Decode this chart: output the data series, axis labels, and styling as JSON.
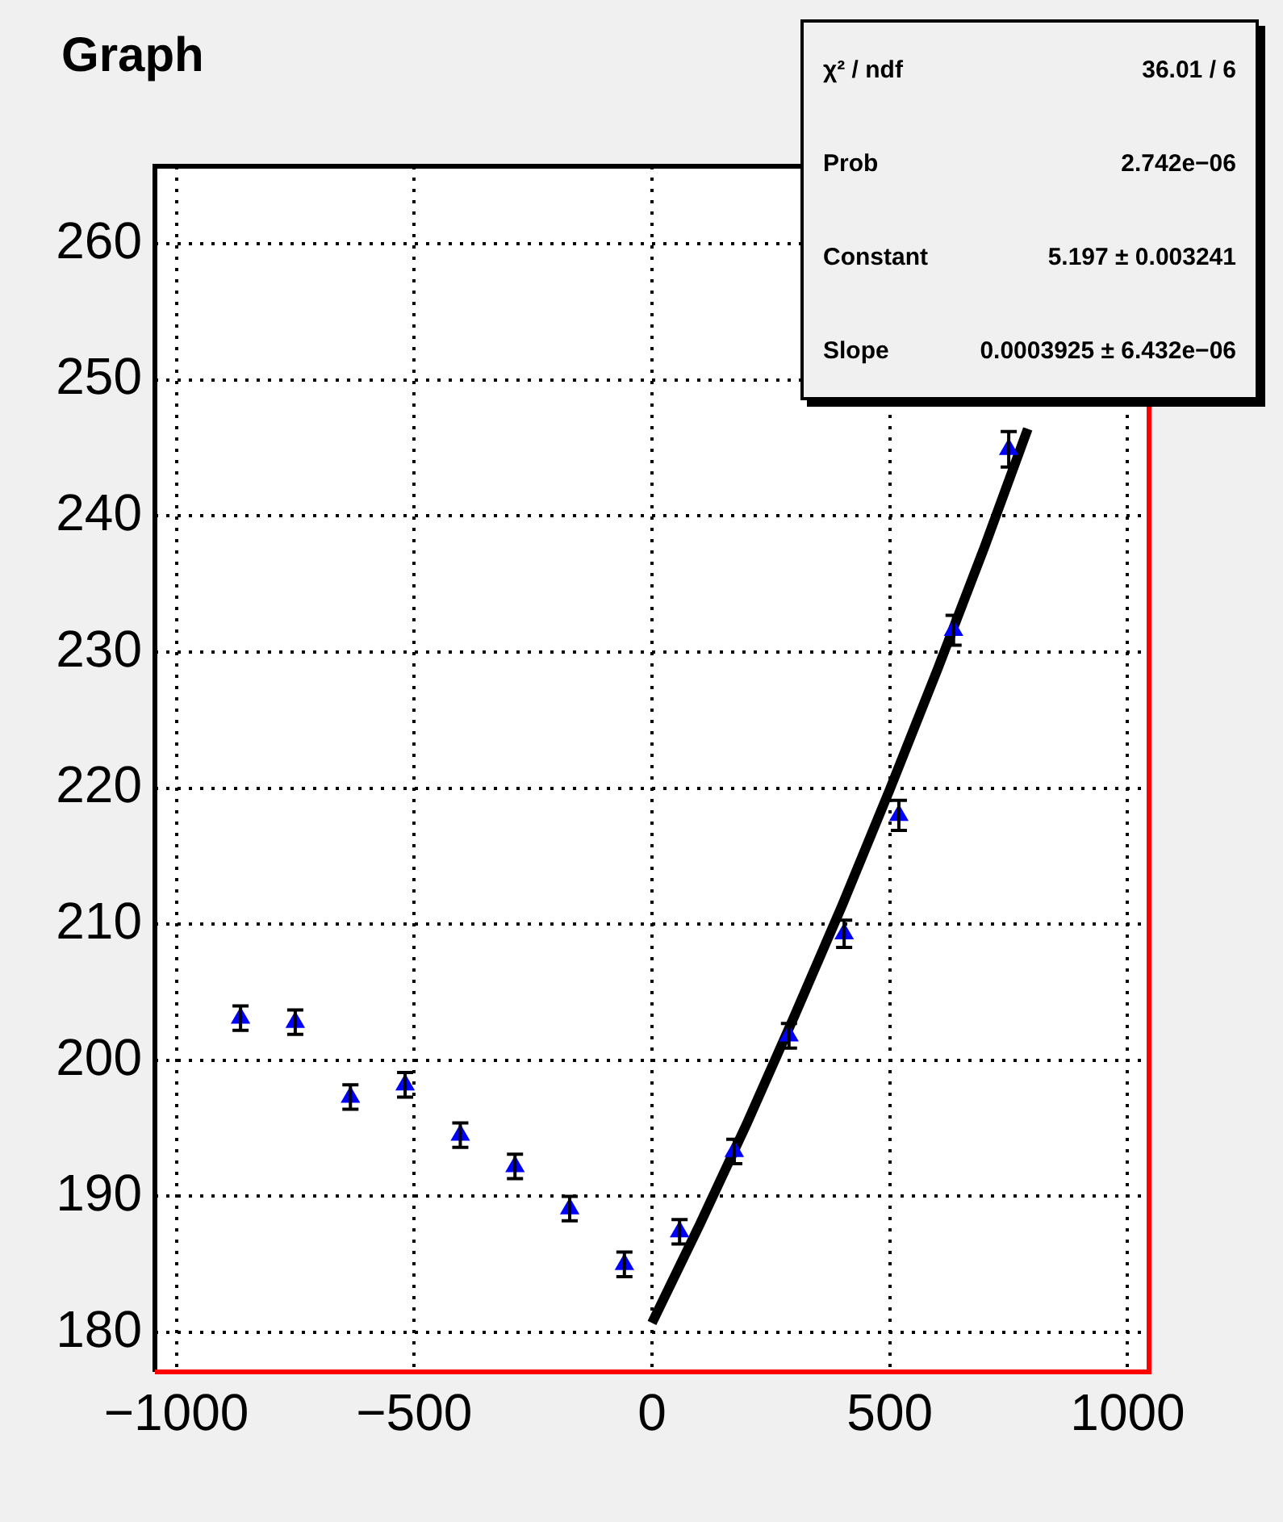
{
  "chart_data": {
    "type": "scatter",
    "title": "Graph",
    "x": [
      -865,
      -750,
      -634,
      -519,
      -403,
      -288,
      -173,
      -58,
      58,
      173,
      288,
      404,
      519,
      634,
      750
    ],
    "series": [
      {
        "type": "scatter",
        "color": "#0000ff",
        "marker": "triangle",
        "values": [
          203.1,
          202.8,
          197.3,
          198.2,
          194.5,
          192.2,
          189.1,
          185.0,
          187.4,
          193.3,
          201.8,
          209.3,
          218.0,
          231.6,
          244.9
        ],
        "errors": [
          0.9,
          0.9,
          0.9,
          0.9,
          0.9,
          0.9,
          0.9,
          0.9,
          0.9,
          0.9,
          0.9,
          1.0,
          1.1,
          1.1,
          1.3
        ]
      },
      {
        "type": "line",
        "color": "#000000",
        "marker": "none",
        "line_style": "solid",
        "x": [
          0,
          100,
          200,
          300,
          400,
          500,
          600,
          700,
          790
        ],
        "values": [
          180.7,
          187.9,
          195.4,
          203.3,
          211.4,
          219.9,
          228.7,
          237.8,
          246.4
        ]
      }
    ],
    "xlim": [
      -1045,
      1045
    ],
    "xticks": [
      -1000,
      -500,
      0,
      500,
      1000
    ],
    "ylim": [
      177.1,
      265.7
    ],
    "yticks": [
      180,
      190,
      200,
      210,
      220,
      230,
      240,
      250,
      260
    ],
    "grid": true,
    "legend": false,
    "annotations": [
      "χ² / ndf",
      "36.01 / 6",
      "Prob",
      "2.742e−06",
      "Constant",
      "5.197 ± 0.003241",
      "Slope",
      "0.0003925 ± 6.432e−06"
    ]
  }
}
